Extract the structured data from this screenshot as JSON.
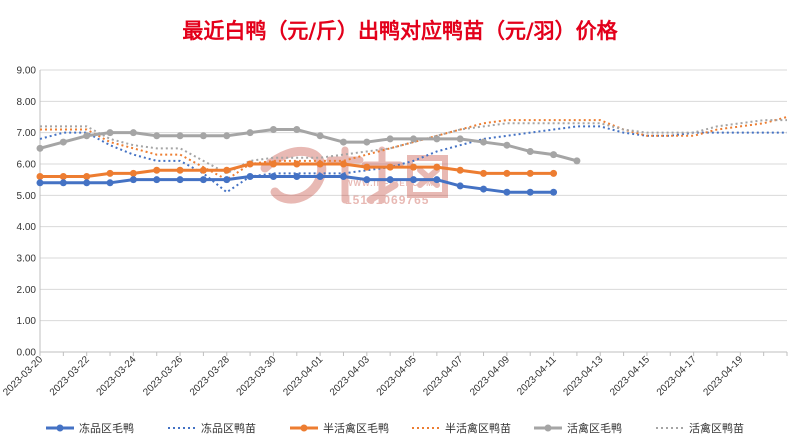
{
  "chart_data": {
    "type": "line",
    "title": "最近白鸭（元/斤）出鸭对应鸭苗（元/羽）价格",
    "title_color": "#e3001b",
    "ylim": [
      0,
      9
    ],
    "y_ticks": [
      "0.00",
      "1.00",
      "2.00",
      "3.00",
      "4.00",
      "5.00",
      "6.00",
      "7.00",
      "8.00",
      "9.00"
    ],
    "grid": true,
    "legend_position": "bottom",
    "x_tick_labels": [
      "2023-03-20",
      "2023-03-22",
      "2023-03-24",
      "2023-03-26",
      "2023-03-28",
      "2023-03-30",
      "2023-04-01",
      "2023-04-03",
      "2023-04-05",
      "2023-04-07",
      "2023-04-09",
      "2023-04-11",
      "2023-04-13",
      "2023-04-15",
      "2023-04-17",
      "2023-04-19"
    ],
    "x_dates": [
      "2023-03-20",
      "2023-03-21",
      "2023-03-22",
      "2023-03-23",
      "2023-03-24",
      "2023-03-25",
      "2023-03-26",
      "2023-03-27",
      "2023-03-28",
      "2023-03-29",
      "2023-03-30",
      "2023-03-31",
      "2023-04-01",
      "2023-04-02",
      "2023-04-03",
      "2023-04-04",
      "2023-04-05",
      "2023-04-06",
      "2023-04-07",
      "2023-04-08",
      "2023-04-09",
      "2023-04-10",
      "2023-04-11",
      "2023-04-12",
      "2023-04-13",
      "2023-04-14",
      "2023-04-15",
      "2023-04-16",
      "2023-04-17",
      "2023-04-18",
      "2023-04-19",
      "2023-04-20",
      "2023-04-21"
    ],
    "series": [
      {
        "name": "冻品区毛鸭",
        "style": "solid",
        "color": "#4472c4",
        "values": [
          5.4,
          5.4,
          5.4,
          5.4,
          5.5,
          5.5,
          5.5,
          5.5,
          5.5,
          5.6,
          5.6,
          5.6,
          5.6,
          5.6,
          5.5,
          5.5,
          5.5,
          5.5,
          5.3,
          5.2,
          5.1,
          5.1,
          5.1,
          null,
          null,
          null,
          null,
          null,
          null,
          null,
          null,
          null,
          null
        ]
      },
      {
        "name": "冻品区鸭苗",
        "style": "dotted",
        "color": "#4472c4",
        "values": [
          6.8,
          7.0,
          7.0,
          6.6,
          6.3,
          6.1,
          6.1,
          5.7,
          5.1,
          5.6,
          5.7,
          5.7,
          5.7,
          5.7,
          5.8,
          5.9,
          6.1,
          6.4,
          6.6,
          6.8,
          6.9,
          7.0,
          7.1,
          7.2,
          7.2,
          7.0,
          6.9,
          6.9,
          7.0,
          7.0,
          7.0,
          7.0,
          7.0
        ]
      },
      {
        "name": "半活禽区毛鸭",
        "style": "solid",
        "color": "#ed7d31",
        "values": [
          5.6,
          5.6,
          5.6,
          5.7,
          5.7,
          5.8,
          5.8,
          5.8,
          5.8,
          6.0,
          6.0,
          6.0,
          6.0,
          6.0,
          5.9,
          5.9,
          5.9,
          5.9,
          5.8,
          5.7,
          5.7,
          5.7,
          5.7,
          null,
          null,
          null,
          null,
          null,
          null,
          null,
          null,
          null,
          null
        ]
      },
      {
        "name": "半活禽区鸭苗",
        "style": "dotted",
        "color": "#ed7d31",
        "values": [
          7.1,
          7.1,
          7.1,
          6.7,
          6.5,
          6.3,
          6.3,
          5.9,
          5.5,
          6.0,
          6.1,
          6.1,
          6.1,
          6.1,
          6.3,
          6.5,
          6.7,
          6.9,
          7.1,
          7.3,
          7.4,
          7.4,
          7.4,
          7.4,
          7.4,
          7.1,
          6.9,
          6.9,
          6.9,
          7.1,
          7.2,
          7.3,
          7.5
        ]
      },
      {
        "name": "活禽区毛鸭",
        "style": "solid",
        "color": "#a5a5a5",
        "values": [
          6.5,
          6.7,
          6.9,
          7.0,
          7.0,
          6.9,
          6.9,
          6.9,
          6.9,
          7.0,
          7.1,
          7.1,
          6.9,
          6.7,
          6.7,
          6.8,
          6.8,
          6.8,
          6.8,
          6.7,
          6.6,
          6.4,
          6.3,
          6.1,
          null,
          null,
          null,
          null,
          null,
          null,
          null,
          null,
          null
        ]
      },
      {
        "name": "活禽区鸭苗",
        "style": "dotted",
        "color": "#a5a5a5",
        "values": [
          7.2,
          7.2,
          7.2,
          6.8,
          6.6,
          6.5,
          6.5,
          6.1,
          5.7,
          6.1,
          6.2,
          6.2,
          6.2,
          6.3,
          6.4,
          6.5,
          6.7,
          6.9,
          7.1,
          7.2,
          7.3,
          7.3,
          7.3,
          7.3,
          7.3,
          7.1,
          7.0,
          7.0,
          7.0,
          7.2,
          7.3,
          7.4,
          7.4
        ]
      }
    ]
  },
  "watermark": {
    "url": "WWW.INFIBEI.COM",
    "phone": "15131069765",
    "color": "#c0392b"
  }
}
